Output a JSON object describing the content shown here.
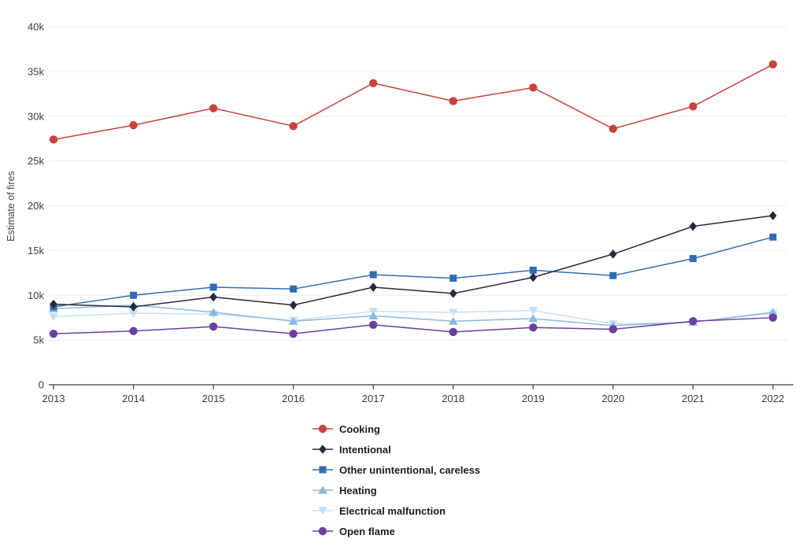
{
  "chart_data": {
    "type": "line",
    "title": "",
    "xlabel": "",
    "ylabel": "Estimate of fires",
    "x_tick_labels": [
      "2013",
      "2014",
      "2015",
      "2016",
      "2017",
      "2018",
      "2019",
      "2020",
      "2021",
      "2022"
    ],
    "ylim": [
      0,
      40000
    ],
    "yticks": {
      "values": [
        0,
        5000,
        10000,
        15000,
        20000,
        25000,
        30000,
        35000,
        40000
      ],
      "labels": [
        "0",
        "5k",
        "10k",
        "15k",
        "20k",
        "25k",
        "30k",
        "35k",
        "40k"
      ]
    },
    "grid": "horizontal",
    "legend_position": "bottom",
    "draw_order": [
      4,
      3,
      2,
      1,
      0,
      5
    ],
    "series": [
      {
        "name": "Cooking",
        "marker": "circle",
        "color": "#c7433e",
        "values": [
          27400,
          29000,
          30900,
          28900,
          33700,
          31700,
          33200,
          28600,
          31100,
          35800
        ]
      },
      {
        "name": "Intentional",
        "marker": "diamond",
        "color": "#262a3b",
        "values": [
          9000,
          8700,
          9800,
          8900,
          10900,
          10200,
          12000,
          14600,
          17700,
          18900
        ]
      },
      {
        "name": "Other unintentional, careless",
        "marker": "square",
        "color": "#2f6eb2",
        "values": [
          8700,
          10000,
          10900,
          10700,
          12300,
          11900,
          12800,
          12200,
          14100,
          16500
        ]
      },
      {
        "name": "Heating",
        "marker": "triangle-up",
        "color": "#8db9dd",
        "values": [
          8500,
          8900,
          8100,
          7100,
          7700,
          7100,
          7400,
          6600,
          7000,
          8100
        ]
      },
      {
        "name": "Electrical malfunction",
        "marker": "triangle-down",
        "color": "#cadff2",
        "values": [
          7600,
          8000,
          7900,
          7200,
          8200,
          8100,
          8300,
          6800,
          7000,
          8000
        ]
      },
      {
        "name": "Open flame",
        "marker": "circle",
        "color": "#6b3fa1",
        "values": [
          5700,
          6000,
          6500,
          5700,
          6700,
          5900,
          6400,
          6200,
          7100,
          7500
        ]
      }
    ],
    "colors": {
      "grid": "#ebebeb",
      "axis": "#3a3a3a",
      "tick_text": "#3d3d3d",
      "background": "#ffffff"
    }
  }
}
